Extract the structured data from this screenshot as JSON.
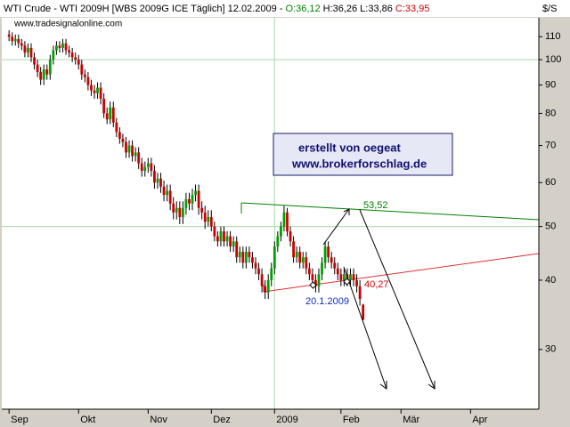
{
  "chart_data": {
    "type": "candlestick",
    "title": {
      "instrument": "WTI Crude - WTI 2009H [WBS 2009G ICE  Täglich] 12.02.2009 - ",
      "open": "O:36,12",
      "high": "H:36,26",
      "low": "L:33,86",
      "close": "C:33,95"
    },
    "subtitle": "www.tradesignalonline.com",
    "y_unit": "$/S",
    "scale": "log",
    "up_color": "#00a000",
    "down_color": "#cc0000",
    "grid_color": "#a8d8a8",
    "ylim": [
      23.4,
      119
    ],
    "yticks": [
      30,
      40,
      50,
      60,
      70,
      80,
      90,
      100,
      110
    ],
    "ygrid": [
      50,
      100
    ],
    "xlim": [
      -2.3,
      167.6
    ],
    "xticks": [
      {
        "value": 0,
        "label": "Sep"
      },
      {
        "value": 22,
        "label": "Okt"
      },
      {
        "value": 44,
        "label": "Nov"
      },
      {
        "value": 64,
        "label": "Dez"
      },
      {
        "value": 84,
        "label": "2009"
      },
      {
        "value": 105,
        "label": "Feb"
      },
      {
        "value": 124,
        "label": "Mär"
      },
      {
        "value": 146,
        "label": "Apr"
      }
    ],
    "xgrid": [
      84
    ],
    "open": [
      111,
      110,
      108,
      109,
      107,
      106,
      103,
      105,
      101,
      98,
      95,
      92,
      96,
      94,
      100,
      104,
      106,
      105,
      107,
      104,
      103,
      101,
      100,
      98,
      94,
      93,
      90,
      88,
      87,
      89,
      85,
      80,
      78,
      82,
      77,
      74,
      72,
      71,
      68,
      70,
      67,
      68,
      65,
      63,
      64,
      65,
      63,
      60,
      61,
      59,
      57,
      58,
      55,
      53,
      54,
      52,
      54,
      56,
      55,
      57,
      58,
      54,
      53,
      51,
      52,
      50,
      48,
      47,
      49,
      47,
      48,
      46,
      47,
      44,
      45,
      43,
      45,
      44,
      43,
      42,
      41,
      39,
      38,
      40,
      42,
      46,
      48,
      50,
      53,
      49,
      47,
      44,
      45,
      43,
      44,
      42,
      41,
      40,
      39,
      41,
      43,
      46,
      44,
      43,
      42,
      41,
      40,
      41,
      40,
      41,
      40,
      39,
      36.12
    ],
    "high": [
      113,
      112,
      111,
      111,
      109,
      108,
      107,
      107,
      103,
      100,
      97,
      98,
      98,
      102,
      106,
      108,
      108,
      109,
      109,
      106,
      105,
      103,
      102,
      100,
      96,
      95,
      92,
      90,
      91,
      91,
      87,
      82,
      84,
      84,
      78.5,
      75.5,
      73.5,
      72.5,
      71.5,
      71.5,
      69.5,
      69.5,
      66.5,
      65.5,
      66.5,
      66.5,
      64.5,
      62.5,
      62.5,
      60.5,
      59.5,
      59.5,
      56.5,
      55.5,
      55.5,
      55.5,
      57.5,
      57.5,
      58.5,
      59.5,
      59.5,
      55.5,
      54.5,
      53.5,
      53.5,
      51,
      49,
      50,
      50,
      49,
      49,
      48,
      48,
      46,
      46,
      46,
      46,
      45,
      44,
      43,
      42,
      40,
      41,
      43,
      47,
      49,
      51,
      54.5,
      54,
      50,
      48,
      46,
      46,
      45,
      45,
      43,
      42,
      41,
      42,
      44,
      47,
      47,
      45,
      44,
      43,
      42,
      42,
      42,
      42,
      42,
      41,
      40,
      36.26
    ],
    "low": [
      108,
      106,
      106,
      105,
      104,
      101,
      101,
      99,
      96,
      93,
      90,
      90,
      92,
      92,
      98,
      102,
      103,
      103,
      102,
      101,
      99,
      98,
      96,
      92,
      91,
      88,
      86,
      85,
      85,
      83,
      78.5,
      76.5,
      76.5,
      75.5,
      72.5,
      70.5,
      69.5,
      66.5,
      66.5,
      65.5,
      65.5,
      63.5,
      61.5,
      61.5,
      62.5,
      61.5,
      58.5,
      58.5,
      57.5,
      55.5,
      55.5,
      53.5,
      51.5,
      51.5,
      50.5,
      50.5,
      52.5,
      53.5,
      53.5,
      55.5,
      52.5,
      51.5,
      49.5,
      50,
      49,
      47,
      46,
      46,
      46,
      46,
      45,
      45,
      43,
      43,
      42,
      42,
      43,
      42,
      41,
      40,
      38,
      37,
      37,
      39,
      41,
      45,
      47,
      49,
      48,
      46,
      43,
      43,
      42,
      42,
      41,
      40,
      39,
      38,
      38,
      40,
      42,
      43,
      42,
      41,
      40,
      39,
      39,
      39,
      39,
      39,
      38,
      36,
      33.86
    ],
    "close": [
      110,
      108,
      109,
      107,
      106,
      103,
      105,
      101,
      98,
      95,
      92,
      96,
      94,
      100,
      104,
      106,
      105,
      107,
      104,
      103,
      101,
      100,
      98,
      94,
      93,
      90,
      88,
      87,
      89,
      85,
      80,
      78,
      82,
      77,
      74,
      72,
      71,
      68,
      70,
      67,
      68,
      65,
      63,
      64,
      65,
      63,
      60,
      61,
      59,
      57,
      58,
      55,
      53,
      54,
      52,
      54,
      56,
      55,
      57,
      58,
      54,
      53,
      51,
      52,
      50,
      48,
      47,
      49,
      47,
      48,
      46,
      47,
      44,
      45,
      43,
      45,
      44,
      43,
      42,
      41,
      39,
      38,
      40,
      42,
      46,
      48,
      50,
      53,
      49,
      47,
      44,
      45,
      43,
      44,
      42,
      41,
      40,
      39,
      41,
      43,
      46,
      44,
      43,
      42,
      41,
      40,
      41,
      40,
      41,
      40,
      39,
      37,
      33.95
    ],
    "annotations": {
      "box_line1": "erstellt von oegeat",
      "box_line2": "www.brokerforschlag.de",
      "upper_level": "53,52",
      "lower_level": "40,27",
      "date_label": "20.1.2009"
    }
  }
}
